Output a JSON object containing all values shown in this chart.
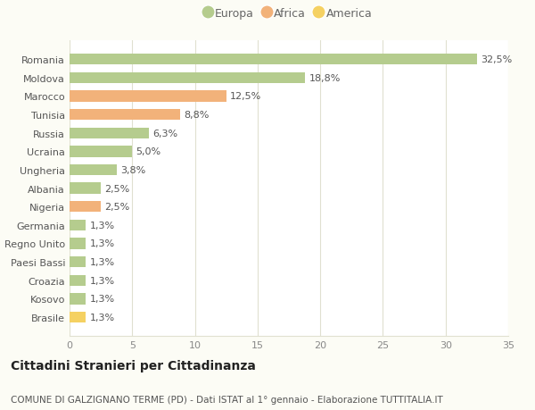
{
  "categories": [
    "Romania",
    "Moldova",
    "Marocco",
    "Tunisia",
    "Russia",
    "Ucraina",
    "Ungheria",
    "Albania",
    "Nigeria",
    "Germania",
    "Regno Unito",
    "Paesi Bassi",
    "Croazia",
    "Kosovo",
    "Brasile"
  ],
  "values": [
    32.5,
    18.8,
    12.5,
    8.8,
    6.3,
    5.0,
    3.8,
    2.5,
    2.5,
    1.3,
    1.3,
    1.3,
    1.3,
    1.3,
    1.3
  ],
  "labels": [
    "32,5%",
    "18,8%",
    "12,5%",
    "8,8%",
    "6,3%",
    "5,0%",
    "3,8%",
    "2,5%",
    "2,5%",
    "1,3%",
    "1,3%",
    "1,3%",
    "1,3%",
    "1,3%",
    "1,3%"
  ],
  "continent": [
    "Europa",
    "Europa",
    "Africa",
    "Africa",
    "Europa",
    "Europa",
    "Europa",
    "Europa",
    "Africa",
    "Europa",
    "Europa",
    "Europa",
    "Europa",
    "Europa",
    "America"
  ],
  "colors": {
    "Europa": "#b5cc8e",
    "Africa": "#f2b27a",
    "America": "#f5d162"
  },
  "xlim": [
    0,
    35
  ],
  "xticks": [
    0,
    5,
    10,
    15,
    20,
    25,
    30,
    35
  ],
  "title": "Cittadini Stranieri per Cittadinanza",
  "subtitle": "COMUNE DI GALZIGNANO TERME (PD) - Dati ISTAT al 1° gennaio - Elaborazione TUTTITALIA.IT",
  "background_color": "#fcfcf5",
  "plot_bg_color": "#ffffff",
  "grid_color": "#e0e0d0",
  "title_fontsize": 10,
  "subtitle_fontsize": 7.5,
  "tick_label_fontsize": 8,
  "bar_label_fontsize": 8,
  "legend_fontsize": 9
}
